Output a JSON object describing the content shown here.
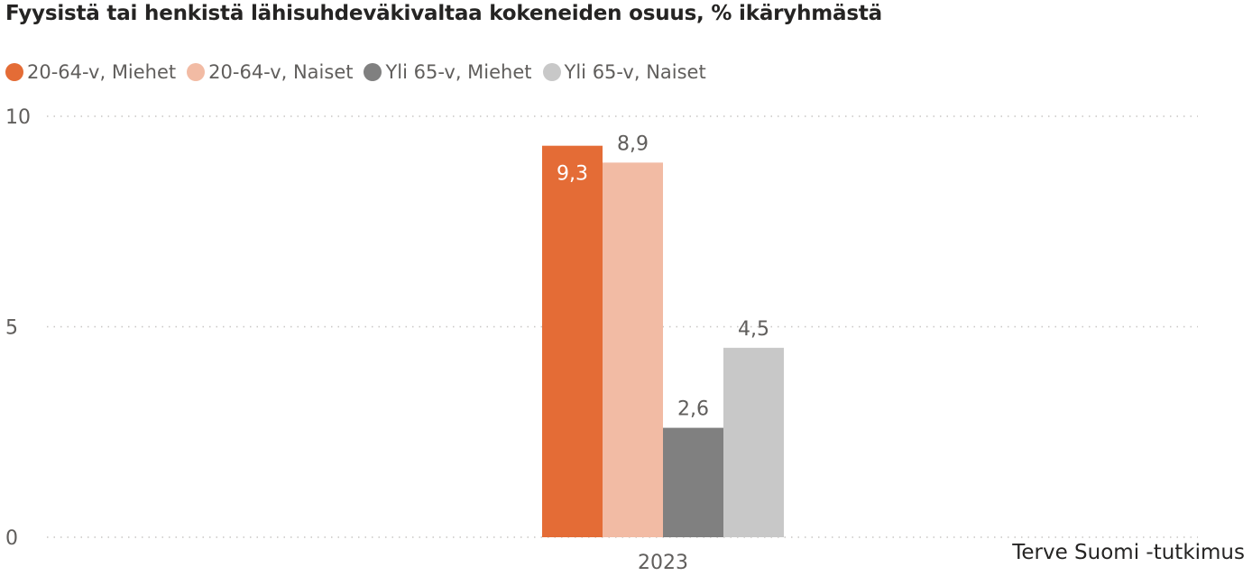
{
  "title": "Fyysistä tai henkistä lähisuhdeväkivaltaa kokeneiden osuus, % ikäryhmästä",
  "source": "Terve Suomi -tutkimus",
  "colors": {
    "text": "#252423",
    "axis_text": "#605e5c",
    "grid": "#c8c6c4",
    "label_inside": "#ffffff",
    "label_outside": "#605e5c"
  },
  "chart_data": {
    "type": "bar",
    "title": "Fyysistä tai henkistä lähisuhdeväkivaltaa kokeneiden osuus, % ikäryhmästä",
    "categories": [
      "2023"
    ],
    "series": [
      {
        "name": "20-64-v, Miehet",
        "color": "#e46c36",
        "values": [
          9.3
        ],
        "labels": [
          "9,3"
        ],
        "label_position": "inside"
      },
      {
        "name": "20-64-v, Naiset",
        "color": "#f2bba4",
        "values": [
          8.9
        ],
        "labels": [
          "8,9"
        ],
        "label_position": "outside"
      },
      {
        "name": "Yli 65-v, Miehet",
        "color": "#808080",
        "values": [
          2.6
        ],
        "labels": [
          "2,6"
        ],
        "label_position": "outside"
      },
      {
        "name": "Yli 65-v, Naiset",
        "color": "#c8c8c8",
        "values": [
          4.5
        ],
        "labels": [
          "4,5"
        ],
        "label_position": "outside"
      }
    ],
    "ylim": [
      0,
      10
    ],
    "yticks": [
      0,
      5,
      10
    ],
    "ytick_labels": [
      "0",
      "5",
      "10"
    ],
    "xlabel": "",
    "ylabel": "",
    "grid": true,
    "legend_position": "top-left"
  }
}
